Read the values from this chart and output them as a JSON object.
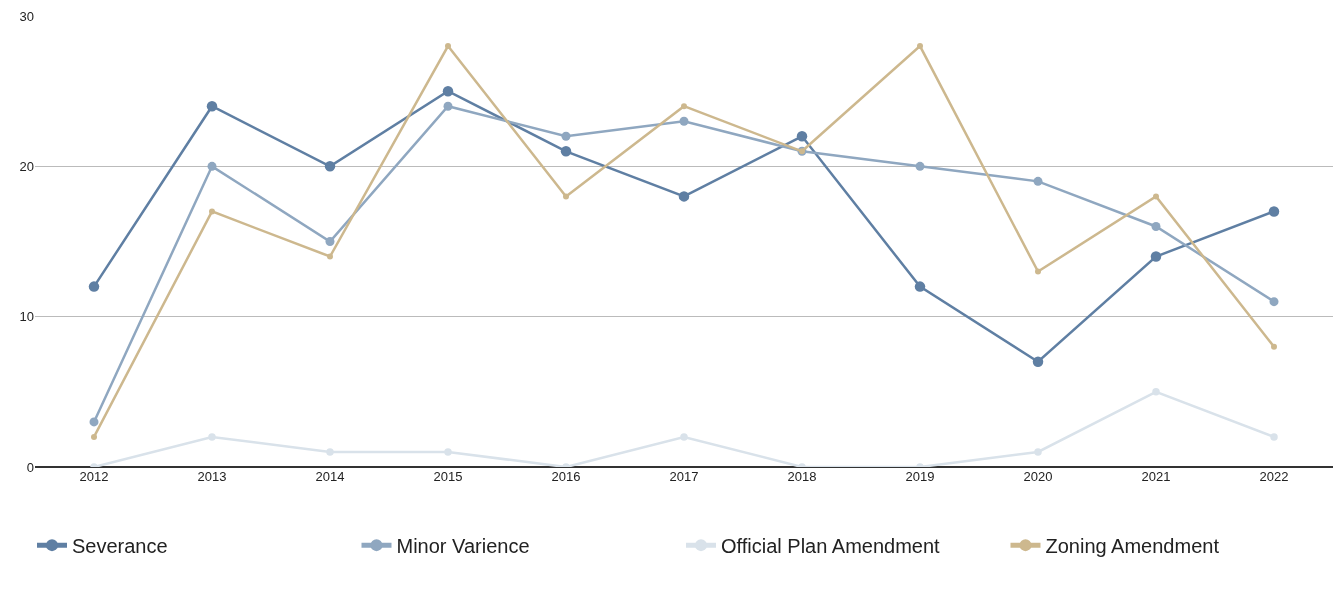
{
  "chart_data": {
    "type": "line",
    "categories": [
      "2012",
      "2013",
      "2014",
      "2015",
      "2016",
      "2017",
      "2018",
      "2019",
      "2020",
      "2021",
      "2022"
    ],
    "series": [
      {
        "name": "Severance",
        "color": "#5f7fa3",
        "values": [
          12,
          24,
          20,
          25,
          21,
          18,
          22,
          12,
          7,
          14,
          17
        ]
      },
      {
        "name": "Minor Varience",
        "color": "#8fa7c0",
        "values": [
          3,
          20,
          15,
          24,
          22,
          23,
          21,
          20,
          19,
          16,
          11
        ]
      },
      {
        "name": "Official Plan Amendment",
        "color": "#d9e2ea",
        "values": [
          0,
          2,
          1,
          1,
          0,
          2,
          0,
          0,
          1,
          5,
          2
        ]
      },
      {
        "name": "Zoning Amendment",
        "color": "#cdb88e",
        "values": [
          2,
          17,
          14,
          28,
          18,
          24,
          21,
          28,
          13,
          18,
          8
        ]
      }
    ],
    "ylim": [
      0,
      30
    ],
    "yticks": [
      0,
      10,
      20,
      30
    ],
    "grid": "y",
    "legend": "bottom",
    "marker": "circle",
    "line_style": "solid"
  }
}
